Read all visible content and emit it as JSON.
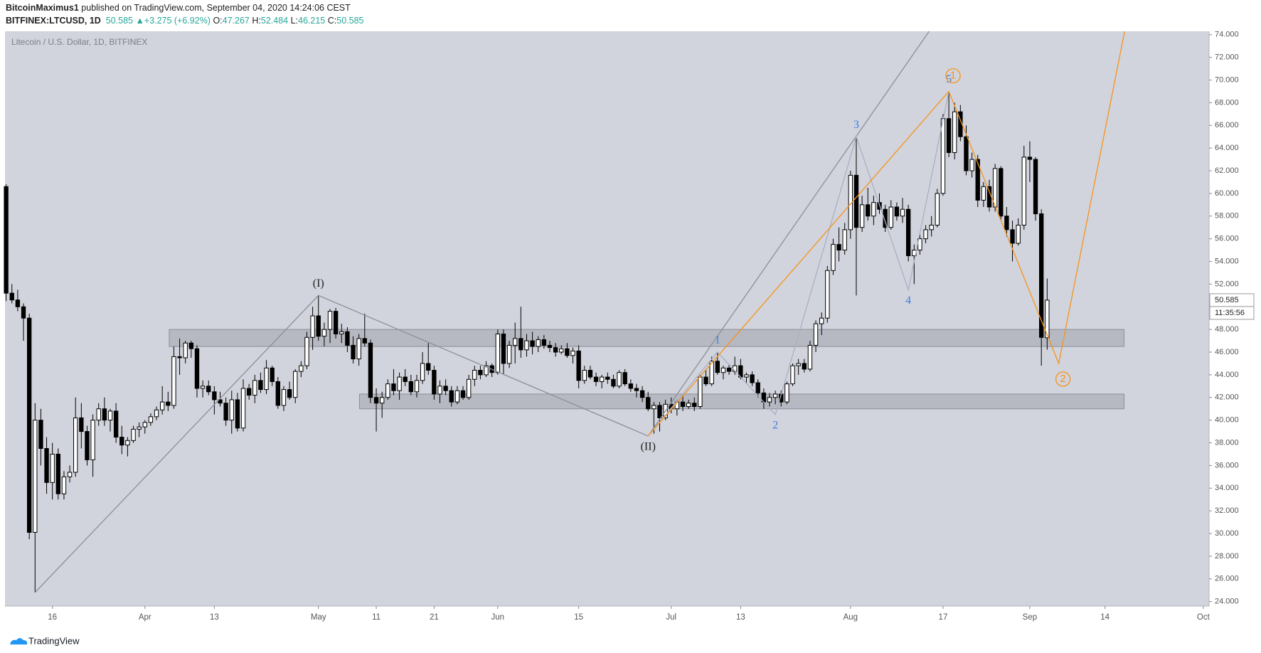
{
  "header": {
    "publisher": "BitcoinMaximus1",
    "published": "published on TradingView.com, September 04, 2020 14:24:06 CEST",
    "symbol": "BITFINEX:LTCUSD, 1D",
    "arrow": "▲",
    "change": "+3.275 (+6.92%)",
    "o": "O:",
    "h": "H:",
    "l": "L:",
    "c": "C:"
  },
  "chart_data": {
    "type": "candlestick",
    "title": "Litecoin / U.S. Dollar, 1D, BITFINEX",
    "candles": [
      [
        60.6,
        60.8,
        50.5,
        51.2
      ],
      [
        51.2,
        52.0,
        50.3,
        50.6
      ],
      [
        50.6,
        51.5,
        49.6,
        50.0
      ],
      [
        50.0,
        50.3,
        47.0,
        49.0
      ],
      [
        49.0,
        49.4,
        29.5,
        30.1
      ],
      [
        30.1,
        41.5,
        24.8,
        40.0
      ],
      [
        40.0,
        41.0,
        36.0,
        37.5
      ],
      [
        37.5,
        38.5,
        33.5,
        34.5
      ],
      [
        34.5,
        38.0,
        33.0,
        37.0
      ],
      [
        37.0,
        37.5,
        33.0,
        33.5
      ],
      [
        33.5,
        35.5,
        33.0,
        35.0
      ],
      [
        35.0,
        36.0,
        34.5,
        35.4
      ],
      [
        35.4,
        42.0,
        35.0,
        40.2
      ],
      [
        40.2,
        41.5,
        37.5,
        39.0
      ],
      [
        39.0,
        39.5,
        36.0,
        36.5
      ],
      [
        36.5,
        40.5,
        35.0,
        40.0
      ],
      [
        40.0,
        41.5,
        39.5,
        41.0
      ],
      [
        41.0,
        42.0,
        39.5,
        40.0
      ],
      [
        40.0,
        41.0,
        39.0,
        40.8
      ],
      [
        40.8,
        41.5,
        38.0,
        38.5
      ],
      [
        38.5,
        39.5,
        37.0,
        37.8
      ],
      [
        37.8,
        38.5,
        36.8,
        38.2
      ],
      [
        38.2,
        39.5,
        38.0,
        39.2
      ],
      [
        39.2,
        39.8,
        38.5,
        39.4
      ],
      [
        39.4,
        40.0,
        38.8,
        39.8
      ],
      [
        39.8,
        40.6,
        39.5,
        40.3
      ],
      [
        40.3,
        41.2,
        40.0,
        40.9
      ],
      [
        40.9,
        43.0,
        40.5,
        41.6
      ],
      [
        41.6,
        42.5,
        40.8,
        41.3
      ],
      [
        41.3,
        46.5,
        41.0,
        45.6
      ],
      [
        45.6,
        47.2,
        44.0,
        45.5
      ],
      [
        45.5,
        47.0,
        45.0,
        46.8
      ],
      [
        46.8,
        47.0,
        45.5,
        46.3
      ],
      [
        46.3,
        46.6,
        42.0,
        42.8
      ],
      [
        42.8,
        43.5,
        42.0,
        43.0
      ],
      [
        43.0,
        43.5,
        42.2,
        42.5
      ],
      [
        42.5,
        43.0,
        40.5,
        41.8
      ],
      [
        41.8,
        42.5,
        41.2,
        41.5
      ],
      [
        41.5,
        42.0,
        39.5,
        40.0
      ],
      [
        40.0,
        42.6,
        38.8,
        41.8
      ],
      [
        41.8,
        42.4,
        39.0,
        39.3
      ],
      [
        39.3,
        43.6,
        39.0,
        42.8
      ],
      [
        42.8,
        43.2,
        41.8,
        42.2
      ],
      [
        42.2,
        44.0,
        41.5,
        43.5
      ],
      [
        43.5,
        44.2,
        42.4,
        42.7
      ],
      [
        42.7,
        45.3,
        42.3,
        44.6
      ],
      [
        44.6,
        44.8,
        43.0,
        43.4
      ],
      [
        43.4,
        43.8,
        41.0,
        41.3
      ],
      [
        41.3,
        43.0,
        40.8,
        42.7
      ],
      [
        42.7,
        43.4,
        41.8,
        42.0
      ],
      [
        42.0,
        44.5,
        41.5,
        44.3
      ],
      [
        44.3,
        45.2,
        43.8,
        44.8
      ],
      [
        44.8,
        47.8,
        44.5,
        47.3
      ],
      [
        47.3,
        50.0,
        46.2,
        49.2
      ],
      [
        49.2,
        51.0,
        47.0,
        47.4
      ],
      [
        47.4,
        48.6,
        46.5,
        48.0
      ],
      [
        48.0,
        49.8,
        46.8,
        49.6
      ],
      [
        49.6,
        49.9,
        47.2,
        47.6
      ],
      [
        47.6,
        48.5,
        46.8,
        47.8
      ],
      [
        47.8,
        48.2,
        46.0,
        46.6
      ],
      [
        46.6,
        47.4,
        45.0,
        45.4
      ],
      [
        45.4,
        47.6,
        44.8,
        47.2
      ],
      [
        47.2,
        49.4,
        46.5,
        46.8
      ],
      [
        46.8,
        47.1,
        41.5,
        42.0
      ],
      [
        42.0,
        42.8,
        39.0,
        41.5
      ],
      [
        41.5,
        42.5,
        40.2,
        42.0
      ],
      [
        42.0,
        43.6,
        41.8,
        43.2
      ],
      [
        43.2,
        44.5,
        42.2,
        42.6
      ],
      [
        42.6,
        44.2,
        41.8,
        43.8
      ],
      [
        43.8,
        44.5,
        43.0,
        43.4
      ],
      [
        43.4,
        44.0,
        42.2,
        42.5
      ],
      [
        42.5,
        44.0,
        42.0,
        43.5
      ],
      [
        43.5,
        46.0,
        43.2,
        45.0
      ],
      [
        45.0,
        46.8,
        44.0,
        44.4
      ],
      [
        44.4,
        44.8,
        41.8,
        42.3
      ],
      [
        42.3,
        43.5,
        41.5,
        43.0
      ],
      [
        43.0,
        43.6,
        42.2,
        42.6
      ],
      [
        42.6,
        43.0,
        41.2,
        41.6
      ],
      [
        41.6,
        43.0,
        41.4,
        42.6
      ],
      [
        42.6,
        43.0,
        41.8,
        42.0
      ],
      [
        42.0,
        44.0,
        41.8,
        43.6
      ],
      [
        43.6,
        44.8,
        43.0,
        44.4
      ],
      [
        44.4,
        44.8,
        43.6,
        44.0
      ],
      [
        44.0,
        45.2,
        43.8,
        44.8
      ],
      [
        44.8,
        45.0,
        43.8,
        44.2
      ],
      [
        44.2,
        48.0,
        44.0,
        47.6
      ],
      [
        47.6,
        48.0,
        44.0,
        45.0
      ],
      [
        45.0,
        47.0,
        44.6,
        46.6
      ],
      [
        46.6,
        48.6,
        45.0,
        47.2
      ],
      [
        47.2,
        50.0,
        45.5,
        46.2
      ],
      [
        46.2,
        47.6,
        45.6,
        47.0
      ],
      [
        47.0,
        47.8,
        45.8,
        46.5
      ],
      [
        46.5,
        47.4,
        46.0,
        47.1
      ],
      [
        47.1,
        47.5,
        46.3,
        46.6
      ],
      [
        46.6,
        47.0,
        46.0,
        46.4
      ],
      [
        46.4,
        46.8,
        45.6,
        46.0
      ],
      [
        46.0,
        46.6,
        45.8,
        46.3
      ],
      [
        46.3,
        46.8,
        45.5,
        45.7
      ],
      [
        45.7,
        46.4,
        45.0,
        46.1
      ],
      [
        46.1,
        46.6,
        42.8,
        43.5
      ],
      [
        43.5,
        44.8,
        43.2,
        44.4
      ],
      [
        44.4,
        44.8,
        43.6,
        43.8
      ],
      [
        43.8,
        44.2,
        43.0,
        43.4
      ],
      [
        43.4,
        44.0,
        42.8,
        43.8
      ],
      [
        43.8,
        44.2,
        43.2,
        43.6
      ],
      [
        43.6,
        44.0,
        42.8,
        43.0
      ],
      [
        43.0,
        44.4,
        42.8,
        44.2
      ],
      [
        44.2,
        44.5,
        43.0,
        43.2
      ],
      [
        43.2,
        43.6,
        42.5,
        42.8
      ],
      [
        42.8,
        43.2,
        42.0,
        42.6
      ],
      [
        42.6,
        43.0,
        41.6,
        42.0
      ],
      [
        42.0,
        42.5,
        40.8,
        41.0
      ],
      [
        41.0,
        41.6,
        38.8,
        41.3
      ],
      [
        41.3,
        41.6,
        39.0,
        40.2
      ],
      [
        40.2,
        41.8,
        40.0,
        41.4
      ],
      [
        41.4,
        42.0,
        40.6,
        41.0
      ],
      [
        41.0,
        41.8,
        40.4,
        41.6
      ],
      [
        41.6,
        42.2,
        40.8,
        41.2
      ],
      [
        41.2,
        41.8,
        41.0,
        41.5
      ],
      [
        41.5,
        42.0,
        40.8,
        41.2
      ],
      [
        41.2,
        44.0,
        41.0,
        43.8
      ],
      [
        43.8,
        44.4,
        43.0,
        43.2
      ],
      [
        43.2,
        45.6,
        43.0,
        45.2
      ],
      [
        45.2,
        46.0,
        44.0,
        44.2
      ],
      [
        44.2,
        44.8,
        43.6,
        44.6
      ],
      [
        44.6,
        44.9,
        44.0,
        44.3
      ],
      [
        44.3,
        45.6,
        44.0,
        44.8
      ],
      [
        44.8,
        45.4,
        43.6,
        43.8
      ],
      [
        43.8,
        44.2,
        43.2,
        44.0
      ],
      [
        44.0,
        44.3,
        43.0,
        43.3
      ],
      [
        43.3,
        43.6,
        42.0,
        42.4
      ],
      [
        42.4,
        42.8,
        41.0,
        41.6
      ],
      [
        41.6,
        42.4,
        41.2,
        42.0
      ],
      [
        42.0,
        42.6,
        41.4,
        42.3
      ],
      [
        42.3,
        42.6,
        41.2,
        41.6
      ],
      [
        41.6,
        43.4,
        41.4,
        43.2
      ],
      [
        43.2,
        45.0,
        43.0,
        44.8
      ],
      [
        44.8,
        45.4,
        44.0,
        45.0
      ],
      [
        45.0,
        45.4,
        44.2,
        44.5
      ],
      [
        44.5,
        47.0,
        44.3,
        46.6
      ],
      [
        46.6,
        48.8,
        46.0,
        48.5
      ],
      [
        48.5,
        49.5,
        47.5,
        49.0
      ],
      [
        49.0,
        53.6,
        48.6,
        53.2
      ],
      [
        53.2,
        56.0,
        52.8,
        55.5
      ],
      [
        55.5,
        57.0,
        54.0,
        55.0
      ],
      [
        55.0,
        57.4,
        54.6,
        56.8
      ],
      [
        56.8,
        62.0,
        56.0,
        61.6
      ],
      [
        61.6,
        65.0,
        51.0,
        57.0
      ],
      [
        57.0,
        59.8,
        56.6,
        59.0
      ],
      [
        59.0,
        60.5,
        57.6,
        58.0
      ],
      [
        58.0,
        59.8,
        57.2,
        59.2
      ],
      [
        59.2,
        60.0,
        58.2,
        58.6
      ],
      [
        58.6,
        59.0,
        56.6,
        57.0
      ],
      [
        57.0,
        59.4,
        56.8,
        58.8
      ],
      [
        58.8,
        59.2,
        57.6,
        58.0
      ],
      [
        58.0,
        59.6,
        57.4,
        58.6
      ],
      [
        58.6,
        59.0,
        54.0,
        54.5
      ],
      [
        54.5,
        55.5,
        52.0,
        55.0
      ],
      [
        55.0,
        56.4,
        54.6,
        56.0
      ],
      [
        56.0,
        57.2,
        55.6,
        56.8
      ],
      [
        56.8,
        58.0,
        56.2,
        57.2
      ],
      [
        57.2,
        60.4,
        57.0,
        60.0
      ],
      [
        60.0,
        67.0,
        59.8,
        66.6
      ],
      [
        66.6,
        69.0,
        63.2,
        63.6
      ],
      [
        63.6,
        68.0,
        63.0,
        67.2
      ],
      [
        67.2,
        67.8,
        64.6,
        65.0
      ],
      [
        65.0,
        66.0,
        61.6,
        62.0
      ],
      [
        62.0,
        63.6,
        61.4,
        63.0
      ],
      [
        63.0,
        63.4,
        58.8,
        59.4
      ],
      [
        59.4,
        61.0,
        58.8,
        60.6
      ],
      [
        60.6,
        61.2,
        58.4,
        58.8
      ],
      [
        58.8,
        62.6,
        58.4,
        62.2
      ],
      [
        62.2,
        62.4,
        57.6,
        58.0
      ],
      [
        58.0,
        58.8,
        56.2,
        56.8
      ],
      [
        56.8,
        57.6,
        54.0,
        55.6
      ],
      [
        55.6,
        57.8,
        55.4,
        57.2
      ],
      [
        57.2,
        64.2,
        56.8,
        63.2
      ],
      [
        63.2,
        64.6,
        61.0,
        63.0
      ],
      [
        63.0,
        63.2,
        57.6,
        58.2
      ],
      [
        58.2,
        58.6,
        44.8,
        47.3
      ],
      [
        47.267,
        52.484,
        46.215,
        50.585
      ]
    ],
    "xlim": [
      -0.2,
      208
    ],
    "xticks": [
      {
        "value": 8,
        "label": "16"
      },
      {
        "value": 24,
        "label": "Apr"
      },
      {
        "value": 36,
        "label": "13"
      },
      {
        "value": 54,
        "label": "May"
      },
      {
        "value": 64,
        "label": "11"
      },
      {
        "value": 74,
        "label": "21"
      },
      {
        "value": 85,
        "label": "Jun"
      },
      {
        "value": 99,
        "label": "15"
      },
      {
        "value": 115,
        "label": "Jul"
      },
      {
        "value": 127,
        "label": "13"
      },
      {
        "value": 146,
        "label": "Aug"
      },
      {
        "value": 162,
        "label": "17"
      },
      {
        "value": 177,
        "label": "Sep"
      },
      {
        "value": 190,
        "label": "14"
      },
      {
        "value": 207,
        "label": "Oct"
      }
    ],
    "ylim": [
      23.6,
      74.3
    ],
    "yticks": [
      {
        "value": 24,
        "label": "24.000"
      },
      {
        "value": 26,
        "label": "26.000"
      },
      {
        "value": 28,
        "label": "28.000"
      },
      {
        "value": 30,
        "label": "30.000"
      },
      {
        "value": 32,
        "label": "32.000"
      },
      {
        "value": 34,
        "label": "34.000"
      },
      {
        "value": 36,
        "label": "36.000"
      },
      {
        "value": 38,
        "label": "38.000"
      },
      {
        "value": 40,
        "label": "40.000"
      },
      {
        "value": 42,
        "label": "42.000"
      },
      {
        "value": 44,
        "label": "44.000"
      },
      {
        "value": 46,
        "label": "46.000"
      },
      {
        "value": 48,
        "label": "48.000"
      },
      {
        "value": 50,
        "label": "50.000"
      },
      {
        "value": 52,
        "label": "52.000"
      },
      {
        "value": 54,
        "label": "54.000"
      },
      {
        "value": 56,
        "label": "56.000"
      },
      {
        "value": 58,
        "label": "58.000"
      },
      {
        "value": 60,
        "label": "60.000"
      },
      {
        "value": 62,
        "label": "62.000"
      },
      {
        "value": 64,
        "label": "64.000"
      },
      {
        "value": 66,
        "label": "66.000"
      },
      {
        "value": 68,
        "label": "68.000"
      },
      {
        "value": 70,
        "label": "70.000"
      },
      {
        "value": 72,
        "label": "72.000"
      },
      {
        "value": 74,
        "label": "74.000"
      }
    ],
    "up_color": "#ffffff",
    "down_color": "#000000",
    "countdown": "11:35:56",
    "zones": [
      {
        "x": [
          28.2,
          193.3
        ],
        "y": [
          46.5,
          48.0
        ]
      },
      {
        "x": [
          61.1,
          193.3
        ],
        "y": [
          41.0,
          42.3
        ]
      }
    ],
    "waves": [
      {
        "line_color": "#8c8f98",
        "label_color": "#222222",
        "x": [
          5,
          54,
          111
        ],
        "y": [
          24.8,
          51.0,
          38.6
        ],
        "labels": [
          null,
          "(I)",
          "(II)"
        ]
      },
      {
        "line_color": "#8c8f98",
        "x": [
          111,
          159.6
        ],
        "y": [
          38.6,
          74.3
        ]
      },
      {
        "line_color": "#aab0c4",
        "label_color": "#3d7ee0",
        "x": [
          111,
          123,
          133,
          147,
          156,
          163
        ],
        "y": [
          38.6,
          46.0,
          40.5,
          65.0,
          51.5,
          69.0
        ],
        "labels": [
          null,
          "1",
          "2",
          "3",
          "4",
          "5"
        ]
      },
      {
        "line_color": "#f7931a",
        "label_color": "#f7931a",
        "circled": true,
        "x": [
          111,
          163,
          182,
          193.4
        ],
        "y": [
          38.6,
          69.0,
          45.0,
          74.3
        ],
        "labels": [
          null,
          "1",
          "2",
          null
        ]
      }
    ]
  },
  "footer": {
    "brand": "TradingView"
  }
}
